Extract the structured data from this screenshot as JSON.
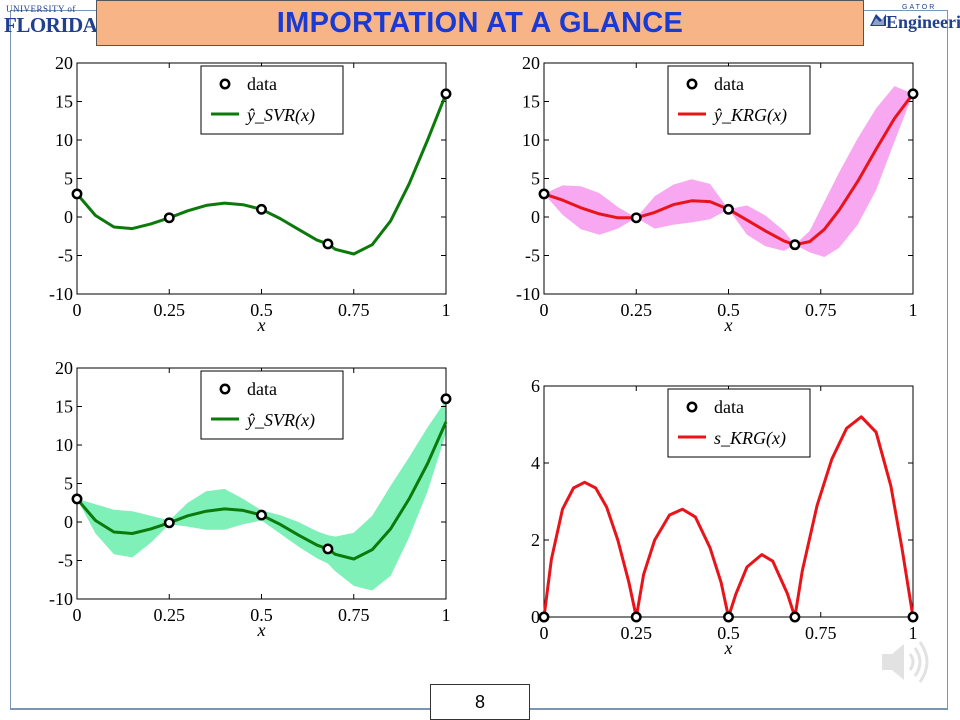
{
  "slide": {
    "title": "IMPORTATION AT A GLANCE",
    "page_number": "8",
    "logo_left_small": "UNIVERSITY of",
    "logo_left_big": "FLORIDA",
    "logo_right_small": "GATOR",
    "logo_right_big": "Engineering",
    "speaker_icon": "speaker-icon"
  },
  "colors": {
    "svr_line": "#0b7a0b",
    "svr_band": "#7ff0b8",
    "krg_line": "#e8141a",
    "krg_band": "#f7a8f0",
    "title_bg": "#f6b487",
    "title_text": "#1a3ad4"
  },
  "chart_data": [
    {
      "type": "line",
      "panel": "top-left",
      "xlabel": "x",
      "xlim": [
        0,
        1
      ],
      "ylim": [
        -10,
        20
      ],
      "xticks": [
        "0",
        "0.25",
        "0.5",
        "0.75",
        "1"
      ],
      "yticks": [
        "20",
        "15",
        "10",
        "5",
        "0",
        "-5",
        "-10"
      ],
      "legend": {
        "placement": "top-center",
        "entries": [
          "data",
          "ŷ_SVR(x)"
        ]
      },
      "data_points": {
        "name": "data",
        "x": [
          0,
          0.25,
          0.5,
          0.68,
          1
        ],
        "y": [
          3.0,
          -0.1,
          1.0,
          -3.5,
          16.0
        ]
      },
      "series": [
        {
          "name": "ŷ_SVR(x)",
          "x": [
            0,
            0.05,
            0.1,
            0.15,
            0.2,
            0.25,
            0.3,
            0.35,
            0.4,
            0.45,
            0.5,
            0.55,
            0.6,
            0.65,
            0.68,
            0.7,
            0.75,
            0.8,
            0.85,
            0.9,
            0.95,
            1.0
          ],
          "y": [
            3.0,
            0.2,
            -1.3,
            -1.5,
            -0.9,
            -0.1,
            0.8,
            1.5,
            1.8,
            1.6,
            1.0,
            -0.2,
            -1.6,
            -3.0,
            -3.5,
            -4.2,
            -4.8,
            -3.6,
            -0.5,
            4.3,
            10.0,
            16.0
          ]
        }
      ]
    },
    {
      "type": "line",
      "panel": "top-right",
      "xlabel": "x",
      "xlim": [
        0,
        1
      ],
      "ylim": [
        -10,
        20
      ],
      "xticks": [
        "0",
        "0.25",
        "0.5",
        "0.75",
        "1"
      ],
      "yticks": [
        "20",
        "15",
        "10",
        "5",
        "0",
        "-5",
        "-10"
      ],
      "legend": {
        "placement": "top-center",
        "entries": [
          "data",
          "ŷ_KRG(x)"
        ]
      },
      "data_points": {
        "name": "data",
        "x": [
          0,
          0.25,
          0.5,
          0.68,
          1
        ],
        "y": [
          3.0,
          -0.1,
          1.0,
          -3.6,
          16.0
        ]
      },
      "series": [
        {
          "name": "ŷ_KRG(x)",
          "x": [
            0,
            0.05,
            0.1,
            0.15,
            0.2,
            0.25,
            0.3,
            0.35,
            0.4,
            0.45,
            0.5,
            0.55,
            0.6,
            0.65,
            0.68,
            0.72,
            0.76,
            0.8,
            0.85,
            0.9,
            0.95,
            1.0
          ],
          "y": [
            3.0,
            2.2,
            1.2,
            0.4,
            -0.1,
            -0.1,
            0.6,
            1.6,
            2.1,
            2.0,
            1.0,
            -0.4,
            -1.8,
            -3.1,
            -3.6,
            -3.2,
            -1.6,
            0.9,
            4.6,
            8.8,
            12.8,
            16.0
          ]
        }
      ],
      "band": {
        "x": [
          0,
          0.05,
          0.1,
          0.15,
          0.2,
          0.25,
          0.3,
          0.35,
          0.4,
          0.45,
          0.5,
          0.55,
          0.6,
          0.65,
          0.68,
          0.72,
          0.76,
          0.8,
          0.85,
          0.9,
          0.95,
          1.0
        ],
        "lower": [
          3.0,
          0.3,
          -1.6,
          -2.3,
          -1.5,
          -0.1,
          -1.5,
          -1.0,
          -0.7,
          -0.3,
          1.0,
          -2.3,
          -3.8,
          -4.4,
          -3.6,
          -4.6,
          -5.2,
          -4.0,
          -1.0,
          3.5,
          9.8,
          16.0
        ],
        "upper": [
          3.0,
          4.1,
          4.0,
          3.1,
          1.3,
          -0.1,
          2.7,
          4.2,
          4.9,
          4.3,
          1.0,
          1.5,
          0.2,
          -1.8,
          -3.6,
          -1.8,
          2.0,
          5.8,
          10.2,
          14.1,
          17.0,
          16.0
        ]
      }
    },
    {
      "type": "line",
      "panel": "bottom-left",
      "xlabel": "x",
      "xlim": [
        0,
        1
      ],
      "ylim": [
        -10,
        20
      ],
      "xticks": [
        "0",
        "0.25",
        "0.5",
        "0.75",
        "1"
      ],
      "yticks": [
        "20",
        "15",
        "10",
        "5",
        "0",
        "-5",
        "-10"
      ],
      "legend": {
        "placement": "top-center",
        "entries": [
          "data",
          "ŷ_SVR(x)"
        ]
      },
      "data_points": {
        "name": "data",
        "x": [
          0,
          0.25,
          0.5,
          0.68,
          1
        ],
        "y": [
          3.0,
          -0.1,
          0.9,
          -3.5,
          16.0
        ]
      },
      "series": [
        {
          "name": "ŷ_SVR(x)",
          "x": [
            0,
            0.05,
            0.1,
            0.15,
            0.2,
            0.25,
            0.3,
            0.35,
            0.4,
            0.45,
            0.5,
            0.55,
            0.6,
            0.65,
            0.68,
            0.7,
            0.75,
            0.8,
            0.85,
            0.9,
            0.95,
            1.0
          ],
          "y": [
            3.0,
            0.2,
            -1.3,
            -1.5,
            -0.9,
            -0.1,
            0.8,
            1.4,
            1.7,
            1.5,
            0.9,
            -0.3,
            -1.7,
            -3.0,
            -3.5,
            -4.2,
            -4.8,
            -3.6,
            -0.9,
            3.0,
            7.6,
            13.0
          ]
        }
      ],
      "band": {
        "x": [
          0,
          0.05,
          0.1,
          0.15,
          0.2,
          0.25,
          0.3,
          0.35,
          0.4,
          0.45,
          0.5,
          0.55,
          0.6,
          0.65,
          0.68,
          0.7,
          0.75,
          0.8,
          0.85,
          0.9,
          0.95,
          1.0
        ],
        "lower": [
          3.0,
          -1.5,
          -4.2,
          -4.6,
          -2.7,
          -0.3,
          -0.6,
          -1.0,
          -1.0,
          -0.3,
          0.2,
          -1.5,
          -3.2,
          -4.7,
          -5.4,
          -6.4,
          -8.3,
          -8.9,
          -7.0,
          -2.0,
          4.0,
          11.5
        ],
        "upper": [
          3.0,
          2.3,
          1.6,
          1.4,
          0.8,
          0.2,
          2.5,
          4.0,
          4.3,
          3.0,
          1.5,
          0.9,
          0.0,
          -1.2,
          -1.7,
          -1.9,
          -1.4,
          0.8,
          4.7,
          8.4,
          12.3,
          15.8
        ]
      }
    },
    {
      "type": "line",
      "panel": "bottom-right",
      "xlabel": "x",
      "xlim": [
        0,
        1
      ],
      "ylim": [
        0,
        6
      ],
      "xticks": [
        "0",
        "0.25",
        "0.5",
        "0.75",
        "1"
      ],
      "yticks": [
        "6",
        "4",
        "2",
        "0"
      ],
      "legend": {
        "placement": "top-center",
        "entries": [
          "data",
          "s_KRG(x)"
        ]
      },
      "data_points": {
        "name": "data",
        "x": [
          0,
          0.25,
          0.5,
          0.68,
          1
        ],
        "y": [
          0,
          0,
          0,
          0,
          0
        ]
      },
      "series": [
        {
          "name": "s_KRG(x)",
          "x": [
            0,
            0.02,
            0.05,
            0.08,
            0.11,
            0.14,
            0.17,
            0.2,
            0.23,
            0.25,
            0.27,
            0.3,
            0.34,
            0.375,
            0.41,
            0.45,
            0.48,
            0.5,
            0.52,
            0.55,
            0.59,
            0.62,
            0.66,
            0.68,
            0.7,
            0.74,
            0.78,
            0.82,
            0.86,
            0.9,
            0.94,
            0.97,
            1.0
          ],
          "y": [
            0,
            1.5,
            2.8,
            3.35,
            3.5,
            3.35,
            2.85,
            2.0,
            0.9,
            0,
            1.1,
            2.0,
            2.65,
            2.8,
            2.6,
            1.8,
            0.9,
            0,
            0.6,
            1.3,
            1.62,
            1.45,
            0.6,
            0,
            1.2,
            2.9,
            4.1,
            4.9,
            5.2,
            4.8,
            3.4,
            1.8,
            0
          ]
        }
      ]
    }
  ]
}
